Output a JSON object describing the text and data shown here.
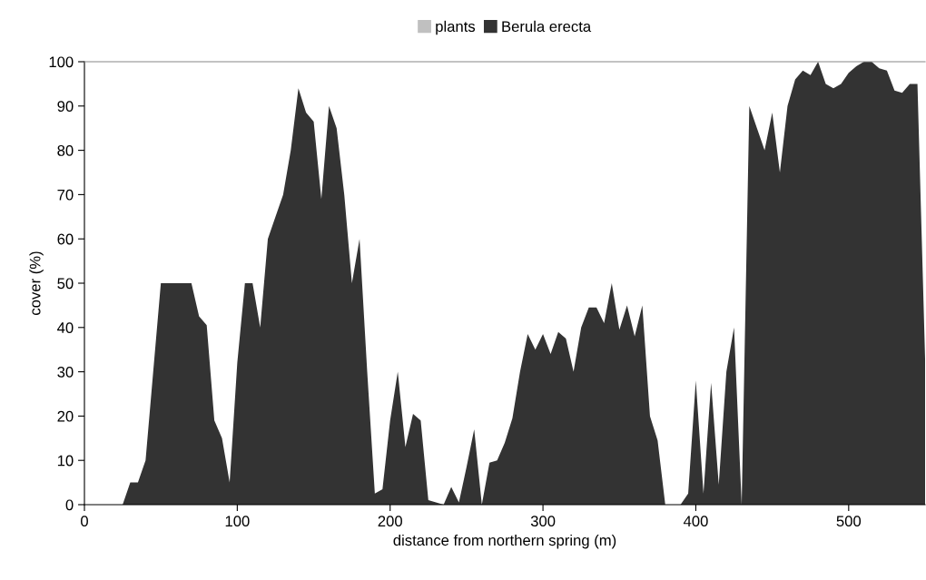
{
  "chart_data": {
    "type": "area",
    "xlabel": "distance from northern spring (m)",
    "ylabel": "cover (%)",
    "x": [
      0,
      5,
      10,
      15,
      20,
      25,
      30,
      35,
      40,
      45,
      50,
      55,
      60,
      65,
      70,
      75,
      80,
      85,
      90,
      95,
      100,
      105,
      110,
      115,
      120,
      125,
      130,
      135,
      140,
      145,
      150,
      155,
      160,
      165,
      170,
      175,
      180,
      185,
      190,
      195,
      200,
      205,
      210,
      215,
      220,
      225,
      230,
      235,
      240,
      245,
      250,
      255,
      260,
      265,
      270,
      275,
      280,
      285,
      290,
      295,
      300,
      305,
      310,
      315,
      320,
      325,
      330,
      335,
      340,
      345,
      350,
      355,
      360,
      365,
      370,
      375,
      380,
      385,
      390,
      395,
      400,
      405,
      410,
      415,
      420,
      425,
      430,
      435,
      440,
      445,
      450,
      455,
      460,
      465,
      470,
      475,
      480,
      485,
      490,
      495,
      500,
      505,
      510,
      515,
      520,
      525,
      530,
      535,
      540,
      545,
      550
    ],
    "series": [
      {
        "name": "plants",
        "color": "#c0c0c0",
        "values": [
          null,
          null,
          null,
          null,
          null,
          null,
          null,
          null,
          null,
          null,
          null,
          null,
          null,
          null,
          null,
          null,
          null,
          null,
          null,
          null,
          null,
          null,
          null,
          null,
          null,
          null,
          null,
          null,
          null,
          null,
          null,
          null,
          null,
          null,
          null,
          null,
          null,
          null,
          null,
          null,
          null,
          null,
          null,
          null,
          null,
          null,
          null,
          null,
          null,
          null,
          null,
          null,
          null,
          null,
          null,
          null,
          null,
          null,
          null,
          null,
          null,
          null,
          null,
          null,
          null,
          null,
          null,
          null,
          null,
          null,
          null,
          null,
          null,
          null,
          null,
          null,
          null,
          null,
          null,
          null,
          null,
          null,
          null,
          null,
          null,
          null,
          null,
          null,
          null,
          null,
          null,
          null,
          null,
          null,
          null,
          null,
          null,
          null,
          null,
          null,
          null,
          null,
          null,
          null,
          null,
          null,
          null,
          null,
          null,
          null,
          null
        ]
      },
      {
        "name": "Berula erecta",
        "color": "#333333",
        "values": [
          0,
          0,
          0,
          0,
          0,
          0,
          5,
          5,
          10,
          30,
          50,
          50,
          50,
          50,
          50,
          42.5,
          40.5,
          19,
          15,
          5,
          32,
          50,
          50,
          40,
          60,
          65,
          70,
          80,
          94,
          88.5,
          86.5,
          69,
          90,
          85,
          70,
          50,
          60,
          30,
          2.5,
          3.5,
          19,
          30,
          13,
          20.5,
          19,
          1,
          0.5,
          0,
          4,
          0.5,
          8.5,
          17,
          0,
          9.5,
          10,
          14,
          19.5,
          30,
          38.5,
          35,
          38.5,
          34,
          39,
          37.5,
          30,
          40,
          44.5,
          44.5,
          41,
          50,
          39.5,
          45,
          38,
          45,
          20,
          14.5,
          0,
          0,
          0,
          2.5,
          28,
          2.5,
          27.5,
          4.5,
          30,
          40,
          0,
          90,
          85,
          80,
          88.5,
          75,
          90,
          96,
          98,
          97,
          100,
          95,
          94,
          95,
          97.5,
          99,
          100,
          100,
          98.5,
          98,
          93.5,
          93,
          95,
          95,
          33
        ]
      }
    ],
    "xlim": [
      0,
      550
    ],
    "xticks": [
      0,
      100,
      200,
      300,
      400,
      500
    ],
    "ylim": [
      0,
      100
    ],
    "yticks": [
      0,
      10,
      20,
      30,
      40,
      50,
      60,
      70,
      80,
      90,
      100
    ],
    "legend": "top",
    "grid": false
  }
}
